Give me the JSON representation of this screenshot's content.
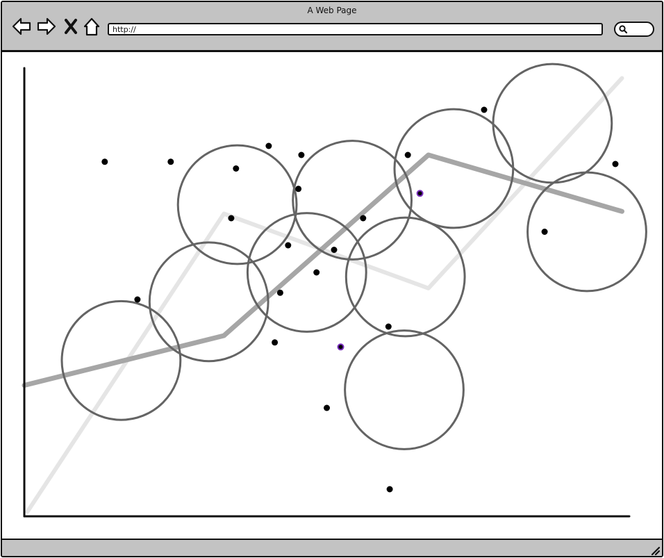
{
  "window": {
    "title": "A Web Page"
  },
  "toolbar": {
    "back_icon": "back-arrow-icon",
    "forward_icon": "forward-arrow-icon",
    "stop_icon": "close-icon",
    "home_icon": "home-icon",
    "url_value": "http://",
    "search_icon": "search-icon"
  },
  "colors": {
    "chrome_gray": "#c3c3c3",
    "outline": "#111111",
    "circle_stroke": "#646464",
    "dark_line": "#a6a6a6",
    "light_line": "#e5e5e5",
    "highlight_dot": "#7b2fbf"
  },
  "chart_data": {
    "type": "scatter",
    "title": "",
    "xlabel": "",
    "ylabel": "",
    "xlim": [
      0,
      100
    ],
    "ylim": [
      0,
      100
    ],
    "grid": false,
    "points": [
      {
        "x": 13.3,
        "y": 78.5
      },
      {
        "x": 24.2,
        "y": 78.5
      },
      {
        "x": 40.4,
        "y": 82.0
      },
      {
        "x": 45.8,
        "y": 80.0
      },
      {
        "x": 35.0,
        "y": 77.0
      },
      {
        "x": 45.3,
        "y": 72.5
      },
      {
        "x": 63.4,
        "y": 80.0
      },
      {
        "x": 76.0,
        "y": 90.0
      },
      {
        "x": 97.7,
        "y": 78.0
      },
      {
        "x": 34.2,
        "y": 66.0
      },
      {
        "x": 56.0,
        "y": 66.0
      },
      {
        "x": 43.6,
        "y": 60.0
      },
      {
        "x": 51.2,
        "y": 59.0
      },
      {
        "x": 48.3,
        "y": 54.0
      },
      {
        "x": 42.3,
        "y": 49.5
      },
      {
        "x": 18.7,
        "y": 48.0
      },
      {
        "x": 41.4,
        "y": 38.5
      },
      {
        "x": 60.2,
        "y": 42.0
      },
      {
        "x": 86.0,
        "y": 63.0
      },
      {
        "x": 50.0,
        "y": 24.0
      },
      {
        "x": 60.4,
        "y": 6.0
      }
    ],
    "highlight_points": [
      {
        "x": 65.4,
        "y": 71.5
      },
      {
        "x": 52.3,
        "y": 37.5
      }
    ],
    "circles": [
      {
        "cx": 16.0,
        "cy": 34.5,
        "r": 19.6
      },
      {
        "cx": 30.5,
        "cy": 47.5,
        "r": 19.6
      },
      {
        "cx": 35.2,
        "cy": 69.0,
        "r": 19.6
      },
      {
        "cx": 46.7,
        "cy": 54.0,
        "r": 19.6
      },
      {
        "cx": 54.2,
        "cy": 70.0,
        "r": 19.6
      },
      {
        "cx": 63.0,
        "cy": 53.0,
        "r": 19.6
      },
      {
        "cx": 62.8,
        "cy": 28.0,
        "r": 19.6
      },
      {
        "cx": 71.0,
        "cy": 77.0,
        "r": 19.6
      },
      {
        "cx": 87.3,
        "cy": 87.0,
        "r": 19.6
      },
      {
        "cx": 93.0,
        "cy": 63.0,
        "r": 19.6
      }
    ],
    "lines": [
      {
        "style": "dark",
        "points": [
          {
            "x": 0,
            "y": 29.0
          },
          {
            "x": 33.0,
            "y": 40.0
          },
          {
            "x": 66.8,
            "y": 80.0
          },
          {
            "x": 98.8,
            "y": 67.5
          }
        ]
      },
      {
        "style": "light",
        "points": [
          {
            "x": 0.5,
            "y": 1.0
          },
          {
            "x": 33.0,
            "y": 67.0
          },
          {
            "x": 66.8,
            "y": 50.5
          },
          {
            "x": 98.8,
            "y": 97.0
          }
        ]
      }
    ]
  }
}
